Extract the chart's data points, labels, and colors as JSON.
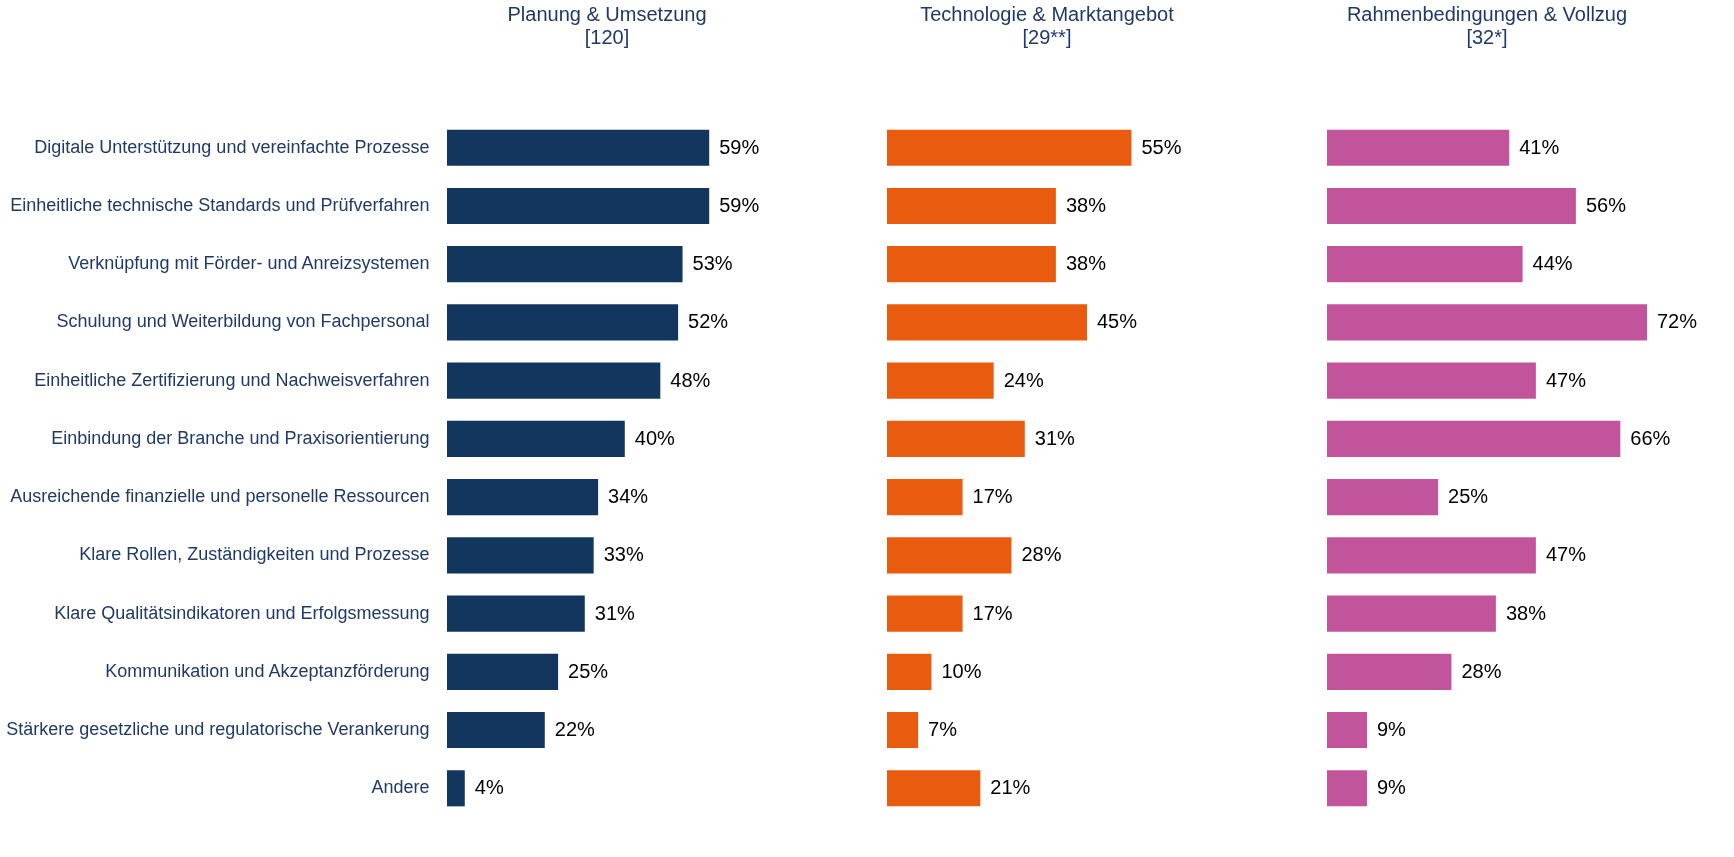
{
  "chart_data": [
    {
      "type": "bar",
      "orientation": "horizontal",
      "title": "Planung & Umsetzung",
      "subtitle": "[120]",
      "tick_labels": "y",
      "categories": [
        "Digitale Unterstützung und vereinfachte Prozesse",
        "Einheitliche technische Standards und Prüfverfahren",
        "Verknüpfung mit Förder- und Anreizsystemen",
        "Schulung und Weiterbildung von Fachpersonal",
        "Einheitliche Zertifizierung und Nachweisverfahren",
        "Einbindung der Branche und Praxisorientierung",
        "Ausreichende finanzielle und personelle Ressourcen",
        "Klare Rollen, Zuständigkeiten und Prozesse",
        "Klare Qualitätsindikatoren und Erfolgsmessung",
        "Kommunikation und Akzeptanzförderung",
        "Stärkere gesetzliche und regulatorische Verankerung",
        "Andere"
      ],
      "series": [
        {
          "color": "#13365e",
          "values": [
            59,
            59,
            53,
            52,
            48,
            40,
            34,
            33,
            31,
            25,
            22,
            4
          ],
          "value_labels": [
            "59%",
            "59%",
            "53%",
            "52%",
            "48%",
            "40%",
            "34%",
            "33%",
            "31%",
            "25%",
            "22%",
            "4%"
          ]
        }
      ]
    },
    {
      "type": "bar",
      "orientation": "horizontal",
      "title": "Technologie & Marktangebot",
      "subtitle": "[29**]",
      "tick_labels": false,
      "categories": [
        "Digitale Unterstützung und vereinfachte Prozesse",
        "Einheitliche technische Standards und Prüfverfahren",
        "Verknüpfung mit Förder- und Anreizsystemen",
        "Schulung und Weiterbildung von Fachpersonal",
        "Einheitliche Zertifizierung und Nachweisverfahren",
        "Einbindung der Branche und Praxisorientierung",
        "Ausreichende finanzielle und personelle Ressourcen",
        "Klare Rollen, Zuständigkeiten und Prozesse",
        "Klare Qualitätsindikatoren und Erfolgsmessung",
        "Kommunikation und Akzeptanzförderung",
        "Stärkere gesetzliche und regulatorische Verankerung",
        "Andere"
      ],
      "series": [
        {
          "color": "#e95c0f",
          "values": [
            55,
            38,
            38,
            45,
            24,
            31,
            17,
            28,
            17,
            10,
            7,
            21
          ],
          "value_labels": [
            "55%",
            "38%",
            "38%",
            "45%",
            "24%",
            "31%",
            "17%",
            "28%",
            "17%",
            "10%",
            "7%",
            "21%"
          ]
        }
      ]
    },
    {
      "type": "bar",
      "orientation": "horizontal",
      "title": "Rahmenbedingungen & Vollzug",
      "subtitle": "[32*]",
      "tick_labels": false,
      "categories": [
        "Digitale Unterstützung und vereinfachte Prozesse",
        "Einheitliche technische Standards und Prüfverfahren",
        "Verknüpfung mit Förder- und Anreizsystemen",
        "Schulung und Weiterbildung von Fachpersonal",
        "Einheitliche Zertifizierung und Nachweisverfahren",
        "Einbindung der Branche und Praxisorientierung",
        "Ausreichende finanzielle und personelle Ressourcen",
        "Klare Rollen, Zuständigkeiten und Prozesse",
        "Klare Qualitätsindikatoren und Erfolgsmessung",
        "Kommunikation und Akzeptanzförderung",
        "Stärkere gesetzliche und regulatorische Verankerung",
        "Andere"
      ],
      "series": [
        {
          "color": "#c2549c",
          "values": [
            41,
            56,
            44,
            72,
            47,
            66,
            25,
            47,
            38,
            28,
            9,
            9
          ],
          "value_labels": [
            "41%",
            "56%",
            "44%",
            "72%",
            "47%",
            "66%",
            "25%",
            "47%",
            "38%",
            "28%",
            "9%",
            "9%"
          ]
        }
      ]
    }
  ]
}
